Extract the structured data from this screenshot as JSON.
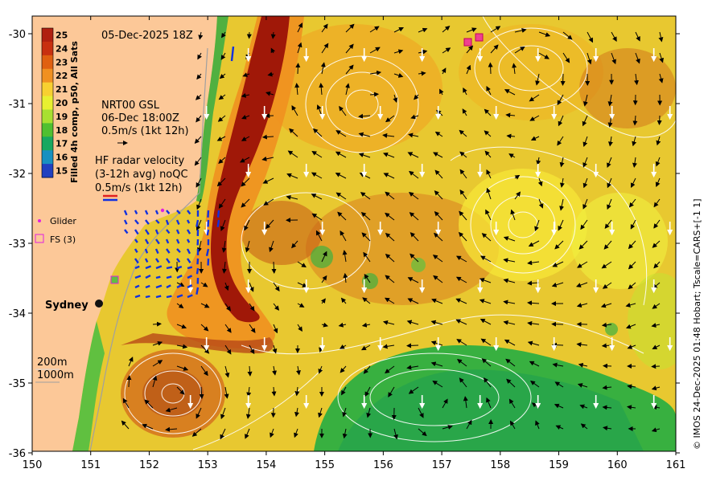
{
  "date_title": "05-Dec-2025 18Z",
  "colorbar": {
    "label": "Filled 4h comp, p50, All Sats",
    "ticks": [
      "25",
      "24",
      "23",
      "22",
      "21",
      "20",
      "19",
      "18",
      "17",
      "16",
      "15"
    ],
    "colors": [
      "#b02010",
      "#c83010",
      "#e06010",
      "#f09020",
      "#f8d030",
      "#e8f030",
      "#a8e030",
      "#50c030",
      "#18a860",
      "#1890c0",
      "#2040c0"
    ]
  },
  "gsl": {
    "title": "NRT00 GSL",
    "date": "06-Dec 18:00Z",
    "scale": "0.5m/s (1kt 12h)"
  },
  "hf_radar": {
    "title": "HF radar velocity",
    "avg": "(3-12h avg) noQC",
    "scale": "0.5m/s (1kt 12h)"
  },
  "legend": {
    "glider": "Glider",
    "fs": "FS (3)"
  },
  "place": {
    "sydney": "Sydney"
  },
  "isobaths": {
    "a": "200m",
    "b": "1000m"
  },
  "axes": {
    "x_ticks": [
      "150",
      "151",
      "152",
      "153",
      "154",
      "155",
      "156",
      "157",
      "158",
      "159",
      "160",
      "161"
    ],
    "y_ticks": [
      "-30",
      "-31",
      "-32",
      "-33",
      "-34",
      "-35",
      "-36"
    ]
  },
  "credit": "© IMOS 24-Dec-2025 01:48 Hobart; Tscale=CARS+[-1 1]",
  "colors": {
    "land": "#fcc898",
    "warm_core": "#a01808",
    "cool": "#30b040",
    "mid": "#e8c030"
  }
}
